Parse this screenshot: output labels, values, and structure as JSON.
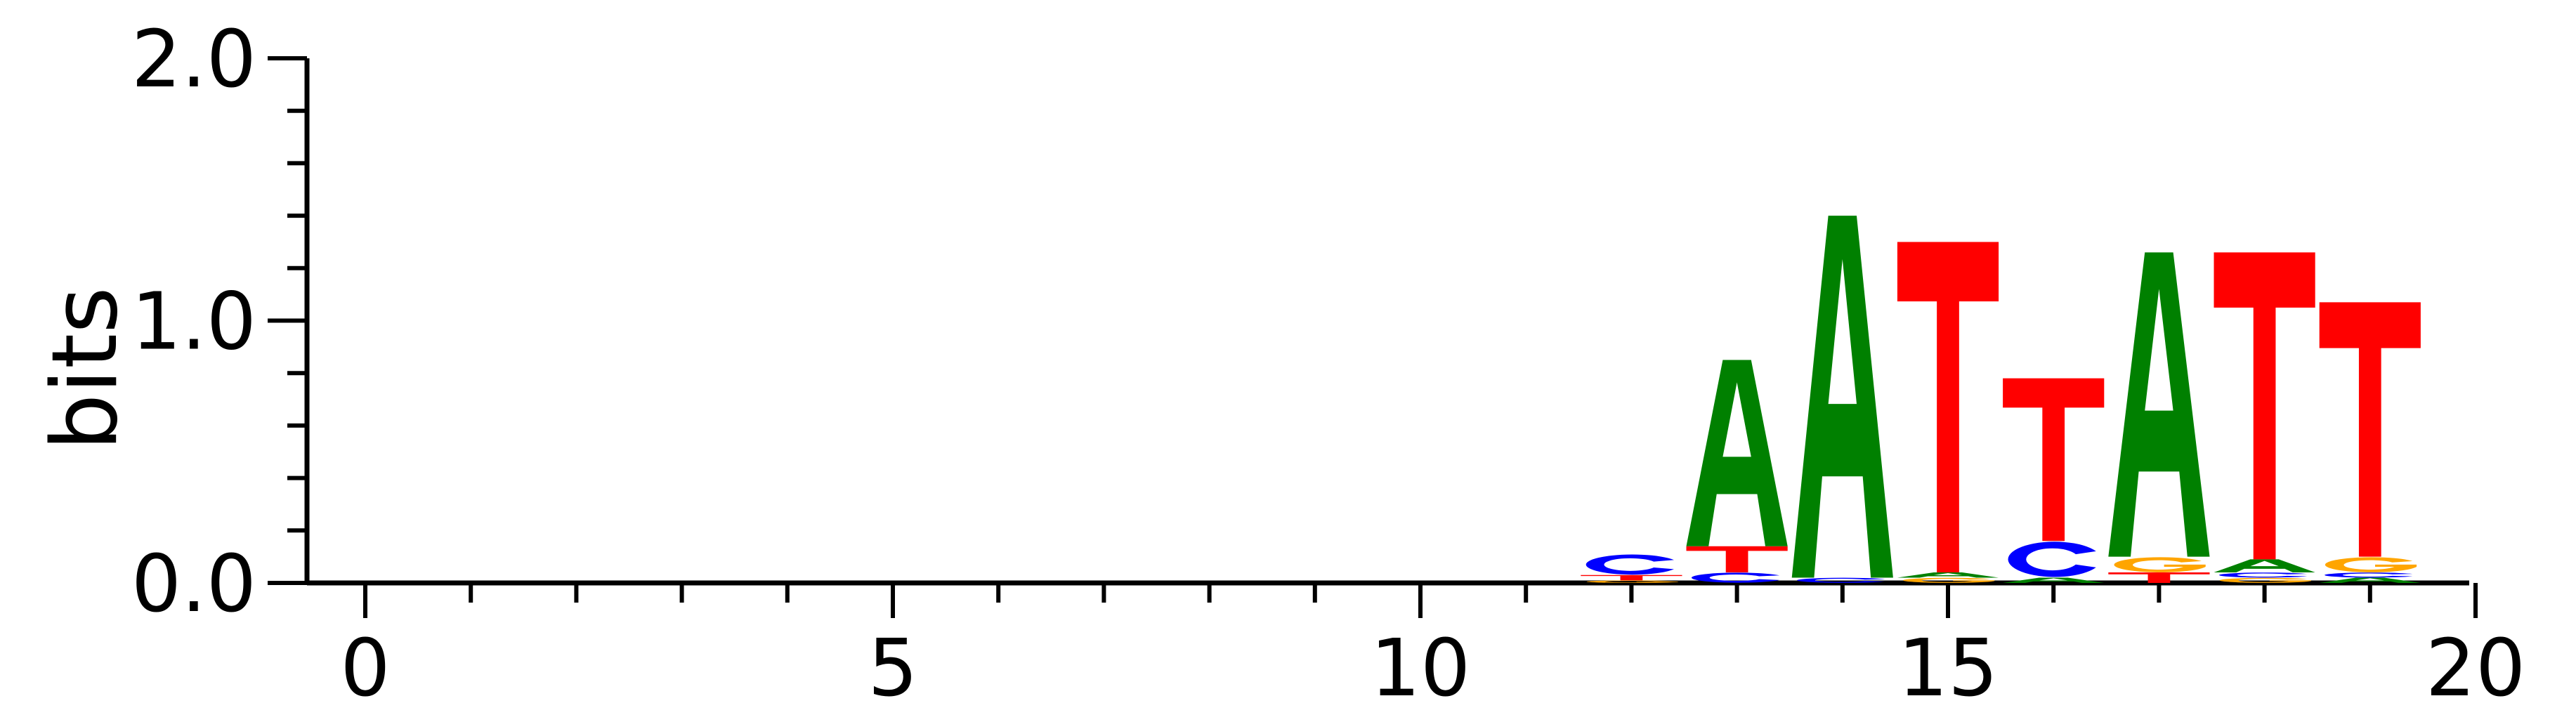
{
  "chart_data": {
    "type": "sequence-logo",
    "ylabel": "bits",
    "xlabel": "",
    "ylim": [
      0,
      2
    ],
    "y_ticks": [
      "0.0",
      "1.0",
      "2.0"
    ],
    "x_ticks": [
      "0",
      "5",
      "10",
      "15",
      "20"
    ],
    "x_tick_values": [
      0,
      5,
      10,
      15,
      20
    ],
    "colors": {
      "A": "#008000",
      "C": "#0000ff",
      "G": "#ffa500",
      "T": "#ff0000"
    },
    "positions": [
      {
        "pos": 12,
        "letters": [
          {
            "base": "G",
            "bits": 0.01
          },
          {
            "base": "T",
            "bits": 0.02
          },
          {
            "base": "C",
            "bits": 0.08
          }
        ]
      },
      {
        "pos": 13,
        "letters": [
          {
            "base": "C",
            "bits": 0.04
          },
          {
            "base": "T",
            "bits": 0.1
          },
          {
            "base": "A",
            "bits": 0.71
          }
        ]
      },
      {
        "pos": 14,
        "letters": [
          {
            "base": "C",
            "bits": 0.02
          },
          {
            "base": "A",
            "bits": 1.38
          }
        ]
      },
      {
        "pos": 15,
        "letters": [
          {
            "base": "G",
            "bits": 0.02
          },
          {
            "base": "A",
            "bits": 0.02
          },
          {
            "base": "T",
            "bits": 1.26
          }
        ]
      },
      {
        "pos": 16,
        "letters": [
          {
            "base": "A",
            "bits": 0.02
          },
          {
            "base": "C",
            "bits": 0.14
          },
          {
            "base": "T",
            "bits": 0.62
          }
        ]
      },
      {
        "pos": 17,
        "letters": [
          {
            "base": "T",
            "bits": 0.04
          },
          {
            "base": "G",
            "bits": 0.06
          },
          {
            "base": "A",
            "bits": 1.16
          }
        ]
      },
      {
        "pos": 18,
        "letters": [
          {
            "base": "G",
            "bits": 0.02
          },
          {
            "base": "C",
            "bits": 0.02
          },
          {
            "base": "A",
            "bits": 0.05
          },
          {
            "base": "T",
            "bits": 1.17
          }
        ]
      },
      {
        "pos": 19,
        "letters": [
          {
            "base": "A",
            "bits": 0.02
          },
          {
            "base": "C",
            "bits": 0.02
          },
          {
            "base": "G",
            "bits": 0.06
          },
          {
            "base": "T",
            "bits": 0.97
          }
        ]
      }
    ]
  }
}
